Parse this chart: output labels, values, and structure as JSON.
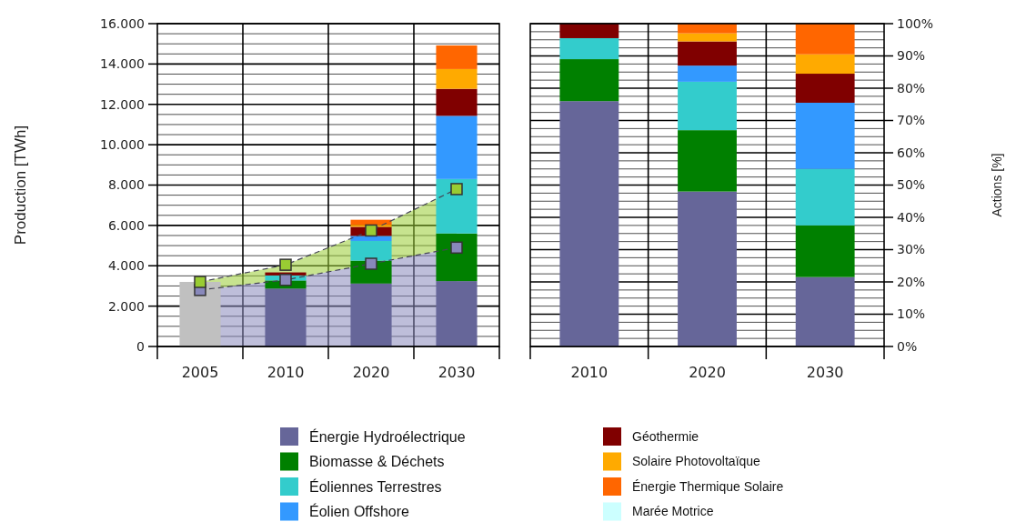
{
  "chart_data": [
    {
      "type": "bar",
      "stacked": true,
      "ylabel": "Production [TWh]",
      "categories": [
        "2005",
        "2010",
        "2020",
        "2030"
      ],
      "ylim": [
        0,
        16000
      ],
      "yticks": [
        {
          "value": 0,
          "label": "0"
        },
        {
          "value": 2000,
          "label": "2.000"
        },
        {
          "value": 4000,
          "label": "4.000"
        },
        {
          "value": 6000,
          "label": "6.000"
        },
        {
          "value": 8000,
          "label": "8.000"
        },
        {
          "value": 10000,
          "label": "10.000"
        },
        {
          "value": 12000,
          "label": "12.000"
        },
        {
          "value": 14000,
          "label": "14.000"
        },
        {
          "value": 16000,
          "label": "16.000"
        }
      ],
      "grid": true,
      "legend": "bottom",
      "marker": "square",
      "line_style": "dashed",
      "series": [
        {
          "type": "line",
          "color": "#8888bb",
          "values": [
            2800,
            3300,
            4100,
            4900
          ],
          "lower": [
            0,
            0,
            0,
            0
          ],
          "upper": [
            2800,
            3300,
            4100,
            4900
          ]
        },
        {
          "type": "line",
          "color": "#99cc33",
          "values": [
            3200,
            4050,
            5750,
            7800
          ],
          "lower": [
            2800,
            3300,
            4100,
            4900
          ],
          "upper": [
            3200,
            4050,
            5750,
            7800
          ]
        },
        {
          "name": "Énergie Hydroélectrique",
          "color": "#666699",
          "colors": [
            "#c0c0c0",
            "#666699",
            "#666699",
            "#666699"
          ],
          "values": [
            3200,
            2870,
            3120,
            3240
          ]
        },
        {
          "name": "Biomasse & Déchets",
          "color": "#008000",
          "values": [
            null,
            400,
            1130,
            2360
          ]
        },
        {
          "name": "Éoliennes Terrestres",
          "color": "#33cccc",
          "values": [
            null,
            250,
            980,
            2700
          ]
        },
        {
          "name": "Éolien Offshore",
          "color": "#3399ff",
          "values": [
            null,
            0,
            250,
            3130
          ]
        },
        {
          "name": "Géothermie",
          "color": "#800000",
          "values": [
            null,
            150,
            450,
            1340
          ]
        },
        {
          "name": "Solaire Photovoltaïque",
          "color": "#ffaa00",
          "values": [
            null,
            0,
            100,
            980
          ]
        },
        {
          "name": "Énergie Thermique Solaire",
          "color": "#ff6600",
          "values": [
            null,
            0,
            250,
            1170
          ]
        },
        {
          "name": "Marée Motrice",
          "color": "#ccffff",
          "values": [
            null,
            0,
            0,
            0
          ]
        }
      ]
    },
    {
      "type": "bar",
      "stacked": true,
      "ylabel": "Actions [%]",
      "categories": [
        "2010",
        "2020",
        "2030"
      ],
      "ylim": [
        0,
        100
      ],
      "yticks": [
        {
          "value": 0,
          "label": "0%"
        },
        {
          "value": 10,
          "label": "10%"
        },
        {
          "value": 20,
          "label": "20%"
        },
        {
          "value": 30,
          "label": "30%"
        },
        {
          "value": 40,
          "label": "40%"
        },
        {
          "value": 50,
          "label": "50%"
        },
        {
          "value": 60,
          "label": "60%"
        },
        {
          "value": 70,
          "label": "70%"
        },
        {
          "value": 80,
          "label": "80%"
        },
        {
          "value": 90,
          "label": "90%"
        },
        {
          "value": 100,
          "label": "100%"
        }
      ],
      "grid": true,
      "series": [
        {
          "color": "#666699",
          "values": [
            76,
            48,
            21.5
          ]
        },
        {
          "color": "#008000",
          "values": [
            13,
            19,
            16
          ]
        },
        {
          "color": "#33cccc",
          "values": [
            6.5,
            15,
            17.5
          ]
        },
        {
          "color": "#3399ff",
          "values": [
            0,
            5,
            20.5
          ]
        },
        {
          "color": "#800000",
          "values": [
            4.5,
            7.5,
            9
          ]
        },
        {
          "color": "#ffaa00",
          "values": [
            0,
            2.5,
            6
          ]
        },
        {
          "color": "#ff6600",
          "values": [
            0,
            3,
            9.5
          ]
        },
        {
          "color": "#ccffff",
          "values": [
            0,
            0,
            0
          ]
        }
      ]
    }
  ]
}
